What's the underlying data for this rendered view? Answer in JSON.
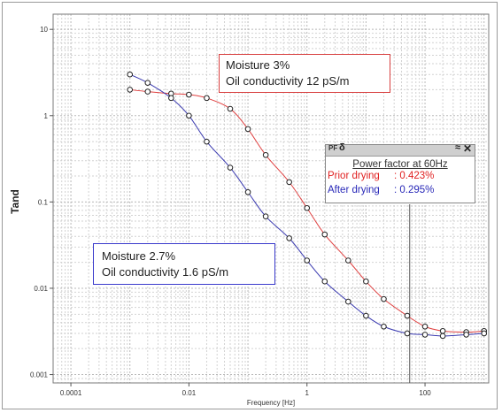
{
  "chart_data": {
    "type": "line",
    "xlabel": "Frequency [Hz]",
    "ylabel": "Tand",
    "x_scale": "log",
    "y_scale": "log",
    "xlim": [
      5e-05,
      1200
    ],
    "ylim": [
      0.0008,
      15
    ],
    "x_ticks": [
      {
        "value": 0.0001,
        "label": "0.0001"
      },
      {
        "value": 0.01,
        "label": "0.01"
      },
      {
        "value": 1,
        "label": "1"
      },
      {
        "value": 100,
        "label": "100"
      }
    ],
    "y_ticks": [
      {
        "value": 10,
        "label": "10"
      },
      {
        "value": 1,
        "label": "1"
      },
      {
        "value": 0.1,
        "label": "0.1"
      },
      {
        "value": 0.01,
        "label": "0.01"
      },
      {
        "value": 0.001,
        "label": "0.001"
      }
    ],
    "grid": true,
    "series": [
      {
        "color": "#e04040",
        "x": [
          0.001,
          0.002,
          0.005,
          0.01,
          0.02,
          0.05,
          0.1,
          0.2,
          0.5,
          1,
          2,
          5,
          10,
          20,
          50,
          100,
          200,
          500,
          1000
        ],
        "y": [
          2.0,
          1.9,
          1.8,
          1.75,
          1.6,
          1.2,
          0.7,
          0.35,
          0.17,
          0.085,
          0.042,
          0.021,
          0.012,
          0.0075,
          0.0048,
          0.0036,
          0.0032,
          0.0031,
          0.0032
        ]
      },
      {
        "color": "#3a3ab0",
        "x": [
          0.001,
          0.002,
          0.005,
          0.01,
          0.02,
          0.05,
          0.1,
          0.2,
          0.5,
          1,
          2,
          5,
          10,
          20,
          50,
          100,
          200,
          500,
          1000
        ],
        "y": [
          3.0,
          2.4,
          1.6,
          1.0,
          0.5,
          0.25,
          0.13,
          0.068,
          0.038,
          0.021,
          0.012,
          0.007,
          0.0048,
          0.0036,
          0.003,
          0.0029,
          0.0028,
          0.0029,
          0.003
        ]
      }
    ],
    "cursor_x": 55,
    "annotations": {
      "red_box": {
        "line1": "Moisture 3%",
        "line2": "Oil conductivity 12 pS/m"
      },
      "blue_box": {
        "line1": "Moisture  2.7%",
        "line2": "Oil conductivity 1.6 pS/m"
      }
    }
  },
  "pf_panel": {
    "tag": "PF",
    "delta": "δ",
    "collapse_glyph": "≈",
    "close_glyph": "✕",
    "title": "Power factor at 60Hz",
    "prior_label": "Prior drying",
    "prior_value": ": 0.423%",
    "after_label": "After drying",
    "after_value": ": 0.295%"
  }
}
